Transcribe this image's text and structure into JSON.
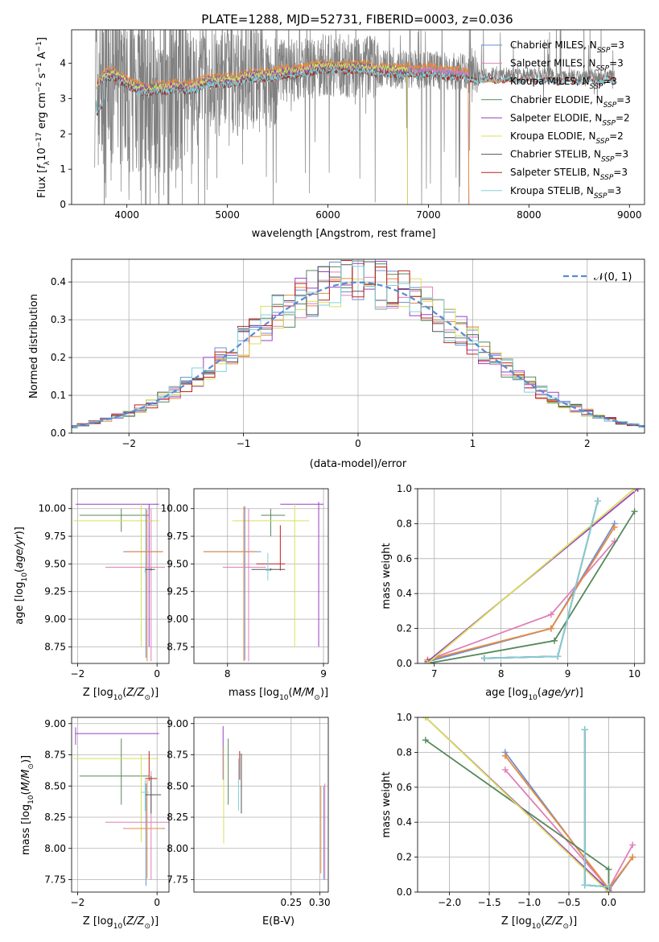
{
  "title": "PLATE=1288, MJD=52731, FIBERID=0003, z=0.036",
  "series_colors": {
    "chabrier_miles": "#6a8fd6",
    "salpeter_miles": "#e07fb8",
    "kroupa_miles": "#e88a3c",
    "chabrier_elodie": "#55885a",
    "salpeter_elodie": "#9a3fc4",
    "kroupa_elodie": "#d8e05a",
    "chabrier_stelib": "#555555",
    "salpeter_stelib": "#c0221c",
    "kroupa_stelib": "#7ed3dc",
    "data": "#808080"
  },
  "chart_data": [
    {
      "id": "spectrum",
      "type": "line",
      "xlabel": "wavelength [Angstrom, rest frame]",
      "ylabel_parts": [
        "Flux [",
        "f",
        "λ",
        "10",
        "−17",
        " erg cm",
        "−2",
        " s",
        "−1",
        " A",
        "−1",
        "]"
      ],
      "xlim": [
        3450,
        9150
      ],
      "ylim": [
        0,
        4.95
      ],
      "xticks": [
        4000,
        5000,
        6000,
        7000,
        8000,
        9000
      ],
      "yticks": [
        0,
        1,
        2,
        3,
        4
      ],
      "legend": [
        {
          "name": "Chabrier MILES, N",
          "sub": "SSP",
          "suffix": "=3",
          "color": "#6a8fd6"
        },
        {
          "name": "Salpeter MILES, N",
          "sub": "SSP",
          "suffix": "=3",
          "color": "#e07fb8"
        },
        {
          "name": "Kroupa MILES, N",
          "sub": "SSP",
          "suffix": "=3",
          "color": "#e88a3c"
        },
        {
          "name": "Chabrier ELODIE, N",
          "sub": "SSP",
          "suffix": "=3",
          "color": "#55885a"
        },
        {
          "name": "Salpeter ELODIE, N",
          "sub": "SSP",
          "suffix": "=2",
          "color": "#9a3fc4"
        },
        {
          "name": "Kroupa ELODIE, N",
          "sub": "SSP",
          "suffix": "=2",
          "color": "#d8e05a"
        },
        {
          "name": "Chabrier STELIB, N",
          "sub": "SSP",
          "suffix": "=3",
          "color": "#555555"
        },
        {
          "name": "Salpeter STELIB, N",
          "sub": "SSP",
          "suffix": "=3",
          "color": "#c0221c"
        },
        {
          "name": "Kroupa STELIB, N",
          "sub": "SSP",
          "suffix": "=3",
          "color": "#7ed3dc"
        }
      ],
      "model_continuum": [
        [
          3700,
          3.35
        ],
        [
          3800,
          3.75
        ],
        [
          3900,
          3.7
        ],
        [
          4000,
          3.5
        ],
        [
          4100,
          3.35
        ],
        [
          4200,
          3.3
        ],
        [
          4300,
          3.35
        ],
        [
          4400,
          3.35
        ],
        [
          4500,
          3.4
        ],
        [
          4600,
          3.35
        ],
        [
          4700,
          3.4
        ],
        [
          4800,
          3.55
        ],
        [
          4900,
          3.55
        ],
        [
          5000,
          3.55
        ],
        [
          5100,
          3.55
        ],
        [
          5200,
          3.7
        ],
        [
          5300,
          3.7
        ],
        [
          5400,
          3.7
        ],
        [
          5500,
          3.75
        ],
        [
          5600,
          3.8
        ],
        [
          5700,
          3.8
        ],
        [
          5800,
          3.85
        ],
        [
          5900,
          3.95
        ],
        [
          6000,
          3.95
        ],
        [
          6100,
          3.95
        ],
        [
          6200,
          3.9
        ],
        [
          6300,
          3.95
        ],
        [
          6400,
          3.9
        ],
        [
          6500,
          3.85
        ],
        [
          6600,
          3.85
        ],
        [
          6700,
          3.8
        ],
        [
          6800,
          3.85
        ],
        [
          6900,
          3.8
        ],
        [
          7000,
          3.85
        ],
        [
          7100,
          3.8
        ],
        [
          7200,
          3.75
        ],
        [
          7300,
          3.75
        ],
        [
          7400,
          3.7
        ],
        [
          7500,
          3.65
        ],
        [
          7600,
          3.7
        ],
        [
          7700,
          3.65
        ],
        [
          7800,
          3.7
        ],
        [
          7900,
          3.65
        ],
        [
          8000,
          3.7
        ],
        [
          8100,
          3.65
        ],
        [
          8200,
          3.7
        ],
        [
          8300,
          3.6
        ],
        [
          8400,
          3.7
        ],
        [
          8500,
          3.6
        ],
        [
          8600,
          3.7
        ],
        [
          8700,
          3.6
        ],
        [
          8800,
          3.7
        ],
        [
          8850,
          3.65
        ]
      ],
      "data_range": [
        3680,
        8850
      ]
    },
    {
      "id": "residual_hist",
      "type": "histogram",
      "xlabel": "(data-model)/error",
      "ylabel": "Normed distribution",
      "xlim": [
        -2.5,
        2.5
      ],
      "ylim": [
        0,
        0.46
      ],
      "xticks": [
        -2,
        -1,
        0,
        1,
        2
      ],
      "xtick_labels": [
        "−2",
        "−1",
        "0",
        "1",
        "2"
      ],
      "yticks": [
        0,
        0.1,
        0.2,
        0.3,
        0.4
      ],
      "ytick_labels": [
        "0.0",
        "0.1",
        "0.2",
        "0.3",
        "0.4"
      ],
      "legend_label": "𝒩(0, 1)",
      "bin_width": 0.1
    },
    {
      "id": "age_vs_Z",
      "type": "errorbar",
      "xlabel": "Z [log",
      "xlabel_sub": "10",
      "xlabel_tail": "(Z/Z",
      "xlabel_end": ")]",
      "ylabel": "age  [log",
      "ylabel_sub": "10",
      "ylabel_tail": "(age/yr)]",
      "xlim": [
        -2.15,
        0.3
      ],
      "ylim": [
        8.6,
        10.18
      ],
      "xticks": [
        -2,
        0
      ],
      "xtick_labels": [
        "−2",
        "0"
      ],
      "yticks": [
        8.75,
        9.0,
        9.25,
        9.5,
        9.75,
        10.0
      ],
      "ytick_labels": [
        "8.75",
        "9.00",
        "9.25",
        "9.50",
        "9.75",
        "10.00"
      ]
    },
    {
      "id": "age_vs_mass",
      "type": "errorbar",
      "xlabel": "mass [log",
      "xlabel_sub": "10",
      "xlabel_tail": "(M/M",
      "xlabel_end": ")]",
      "xlim": [
        7.65,
        9.05
      ],
      "ylim": [
        8.6,
        10.18
      ],
      "xticks": [
        8,
        9
      ],
      "xtick_labels": [
        "8",
        "9"
      ],
      "yticks": [
        8.75,
        9.0,
        9.25,
        9.5,
        9.75,
        10.0
      ],
      "ytick_labels": [
        "8.75",
        "9.00",
        "9.25",
        "9.50",
        "9.75",
        "10.00"
      ]
    },
    {
      "id": "weight_vs_age",
      "type": "line",
      "xlabel": "age  [log",
      "xlabel_sub": "10",
      "xlabel_tail": "(age/yr)]",
      "ylabel": "mass weight",
      "xlim": [
        6.75,
        10.15
      ],
      "ylim": [
        0,
        1
      ],
      "xticks": [
        7,
        8,
        9,
        10
      ],
      "yticks": [
        0,
        0.2,
        0.4,
        0.6,
        0.8,
        1.0
      ],
      "ytick_labels": [
        "0.0",
        "0.2",
        "0.4",
        "0.6",
        "0.8",
        "1.0"
      ],
      "series": [
        {
          "key": "chabrier_miles",
          "points": [
            [
              6.9,
              0.01
            ],
            [
              8.75,
              0.2
            ],
            [
              9.7,
              0.8
            ]
          ]
        },
        {
          "key": "salpeter_miles",
          "points": [
            [
              6.9,
              0.02
            ],
            [
              8.75,
              0.28
            ],
            [
              9.7,
              0.7
            ]
          ]
        },
        {
          "key": "kroupa_miles",
          "points": [
            [
              6.9,
              0.02
            ],
            [
              8.75,
              0.2
            ],
            [
              9.7,
              0.78
            ]
          ]
        },
        {
          "key": "chabrier_elodie",
          "points": [
            [
              6.9,
              0.0
            ],
            [
              8.8,
              0.13
            ],
            [
              10.0,
              0.87
            ]
          ]
        },
        {
          "key": "salpeter_elodie",
          "points": [
            [
              6.9,
              0.01
            ],
            [
              10.05,
              1.0
            ]
          ]
        },
        {
          "key": "kroupa_elodie",
          "points": [
            [
              6.9,
              0.0
            ],
            [
              10.0,
              1.0
            ]
          ]
        },
        {
          "key": "chabrier_stelib",
          "points": [
            [
              7.75,
              0.03
            ],
            [
              8.85,
              0.04
            ],
            [
              9.45,
              0.93
            ]
          ]
        },
        {
          "key": "salpeter_stelib",
          "points": [
            [
              7.75,
              0.03
            ],
            [
              8.85,
              0.04
            ],
            [
              9.45,
              0.93
            ]
          ]
        },
        {
          "key": "kroupa_stelib",
          "points": [
            [
              7.75,
              0.03
            ],
            [
              8.85,
              0.04
            ],
            [
              9.45,
              0.93
            ]
          ]
        }
      ]
    },
    {
      "id": "mass_vs_Z",
      "type": "errorbar",
      "xlabel": "Z [log",
      "xlabel_sub": "10",
      "xlabel_tail": "(Z/Z",
      "xlabel_end": ")]",
      "ylabel": "mass [log",
      "ylabel_sub": "10",
      "ylabel_tail": "(M/M",
      "ylabel_end": ")]",
      "xlim": [
        -2.15,
        0.3
      ],
      "ylim": [
        7.65,
        9.05
      ],
      "xticks": [
        -2,
        0
      ],
      "xtick_labels": [
        "−2",
        "0"
      ],
      "yticks": [
        7.75,
        8.0,
        8.25,
        8.5,
        8.75,
        9.0
      ],
      "ytick_labels": [
        "7.75",
        "8.00",
        "8.25",
        "8.50",
        "8.75",
        "9.00"
      ]
    },
    {
      "id": "mass_vs_ebv",
      "type": "errorbar",
      "xlabel": "E(B-V)",
      "xlim": [
        0.08,
        0.315
      ],
      "ylim": [
        7.65,
        9.05
      ],
      "xticks": [
        0.25,
        0.3
      ],
      "xtick_labels": [
        "0.25",
        "0.30"
      ],
      "yticks": [
        7.75,
        8.0,
        8.25,
        8.5,
        8.75,
        9.0
      ],
      "ytick_labels": [
        "7.75",
        "8.00",
        "8.25",
        "8.50",
        "8.75",
        "9.00"
      ]
    },
    {
      "id": "weight_vs_Z",
      "type": "line",
      "xlabel": "Z [log",
      "xlabel_sub": "10",
      "xlabel_tail": "(Z/Z",
      "xlabel_end": ")]",
      "ylabel": "mass weight",
      "xlim": [
        -2.4,
        0.45
      ],
      "ylim": [
        0,
        1
      ],
      "xticks": [
        -2.0,
        -1.5,
        -1.0,
        -0.5,
        0.0
      ],
      "xtick_labels": [
        "−2.0",
        "−1.5",
        "−1.0",
        "−0.5",
        "0.0"
      ],
      "yticks": [
        0,
        0.2,
        0.4,
        0.6,
        0.8,
        1.0
      ],
      "ytick_labels": [
        "0.0",
        "0.2",
        "0.4",
        "0.6",
        "0.8",
        "1.0"
      ],
      "series": [
        {
          "key": "chabrier_miles",
          "points": [
            [
              -1.3,
              0.8
            ],
            [
              0.0,
              0.01
            ],
            [
              0.3,
              0.2
            ]
          ]
        },
        {
          "key": "salpeter_miles",
          "points": [
            [
              -1.3,
              0.7
            ],
            [
              0.0,
              0.02
            ],
            [
              0.3,
              0.27
            ]
          ]
        },
        {
          "key": "kroupa_miles",
          "points": [
            [
              -1.3,
              0.78
            ],
            [
              0.0,
              0.02
            ],
            [
              0.3,
              0.2
            ]
          ]
        },
        {
          "key": "chabrier_elodie",
          "points": [
            [
              -2.3,
              0.87
            ],
            [
              0.0,
              0.13
            ],
            [
              0.0,
              0.0
            ]
          ]
        },
        {
          "key": "salpeter_elodie",
          "points": [
            [
              -2.3,
              1.0
            ],
            [
              0.0,
              0.01
            ]
          ]
        },
        {
          "key": "kroupa_elodie",
          "points": [
            [
              -2.3,
              1.0
            ],
            [
              0.0,
              0.0
            ]
          ]
        },
        {
          "key": "chabrier_stelib",
          "points": [
            [
              -0.3,
              0.93
            ],
            [
              -0.3,
              0.04
            ],
            [
              0.0,
              0.03
            ]
          ]
        },
        {
          "key": "salpeter_stelib",
          "points": [
            [
              -0.3,
              0.93
            ],
            [
              -0.3,
              0.04
            ],
            [
              0.0,
              0.03
            ]
          ]
        },
        {
          "key": "kroupa_stelib",
          "points": [
            [
              -0.3,
              0.93
            ],
            [
              -0.3,
              0.04
            ],
            [
              0.0,
              0.03
            ]
          ]
        }
      ]
    }
  ]
}
